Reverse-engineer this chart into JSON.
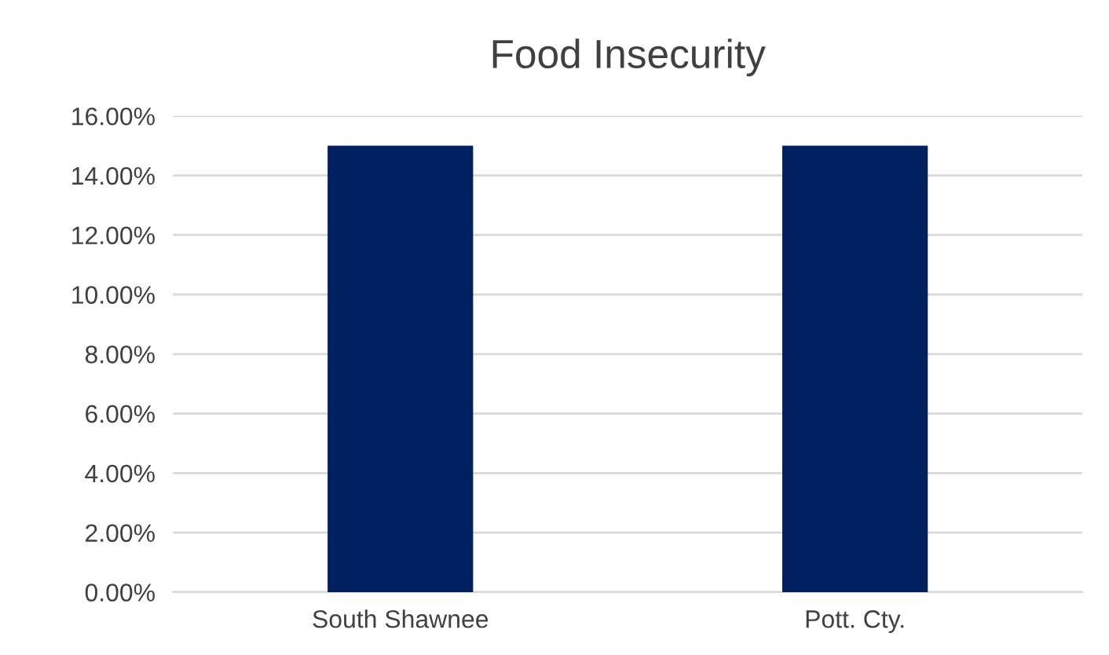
{
  "chart_data": {
    "type": "bar",
    "title": "Food Insecurity",
    "categories": [
      "South Shawnee",
      "Pott. Cty."
    ],
    "values": [
      15.0,
      15.0
    ],
    "color": "#002060",
    "ylim": [
      0,
      16
    ],
    "yticks": [
      {
        "value": 0,
        "label": "0.00%"
      },
      {
        "value": 2,
        "label": "2.00%"
      },
      {
        "value": 4,
        "label": "4.00%"
      },
      {
        "value": 6,
        "label": "6.00%"
      },
      {
        "value": 8,
        "label": "8.00%"
      },
      {
        "value": 10,
        "label": "10.00%"
      },
      {
        "value": 12,
        "label": "12.00%"
      },
      {
        "value": 14,
        "label": "14.00%"
      },
      {
        "value": 16,
        "label": "16.00%"
      }
    ],
    "grid": "y"
  }
}
